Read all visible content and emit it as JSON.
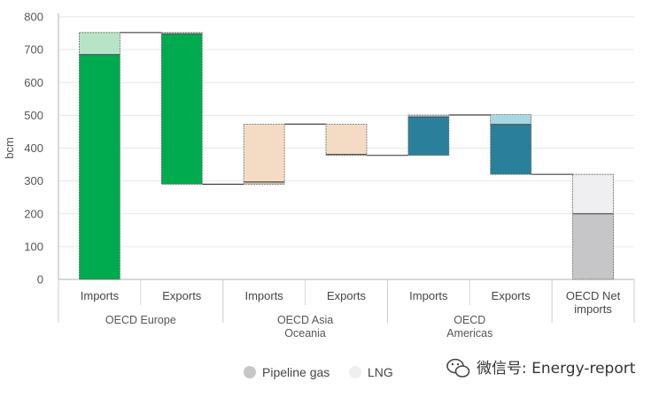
{
  "chart_data": {
    "type": "bar",
    "subtype": "waterfall",
    "ylabel": "bcm",
    "ylim": [
      0,
      800
    ],
    "yticks": [
      0,
      100,
      200,
      300,
      400,
      500,
      600,
      700,
      800
    ],
    "grid": true,
    "legend": {
      "position": "bottom",
      "entries": [
        {
          "name": "Pipeline gas",
          "color": "#c6c6c8"
        },
        {
          "name": "LNG",
          "color": "#efeff2"
        }
      ]
    },
    "categories": [
      "Imports",
      "Exports",
      "Imports",
      "Exports",
      "Imports",
      "Exports",
      "OECD Net imports"
    ],
    "groups": [
      {
        "label": [
          "OECD Europe"
        ],
        "categories": [
          0,
          1
        ]
      },
      {
        "label": [
          "OECD Asia",
          "Oceania"
        ],
        "categories": [
          2,
          3
        ]
      },
      {
        "label": [
          "OECD",
          "Americas"
        ],
        "categories": [
          4,
          5
        ]
      },
      {
        "label": [
          "OECD Net",
          "imports"
        ],
        "categories": [
          6
        ]
      }
    ],
    "bars": [
      {
        "category": "Imports",
        "group": "OECD Europe",
        "base": 0,
        "pipeline": 685,
        "lng": 67,
        "color_pipeline": "#00aa4f",
        "color_lng": "#b7e4c7"
      },
      {
        "category": "Exports",
        "group": "OECD Europe",
        "base": 290,
        "pipeline": 458,
        "lng": 4,
        "color_pipeline": "#00aa4f",
        "color_lng": "#b7e4c7"
      },
      {
        "category": "Imports",
        "group": "OECD Asia Oceania",
        "base": 290,
        "pipeline": 7,
        "lng": 176,
        "color_pipeline": "#cfb9a3",
        "color_lng": "#f4dcc4"
      },
      {
        "category": "Exports",
        "group": "OECD Asia Oceania",
        "base": 378,
        "pipeline": 3,
        "lng": 92,
        "color_pipeline": "#cfb9a3",
        "color_lng": "#f4dcc4"
      },
      {
        "category": "Imports",
        "group": "OECD Americas",
        "base": 378,
        "pipeline": 117,
        "lng": 6,
        "color_pipeline": "#2a7f9b",
        "color_lng": "#a9d6e3"
      },
      {
        "category": "Exports",
        "group": "OECD Americas",
        "base": 320,
        "pipeline": 152,
        "lng": 30,
        "color_pipeline": "#2a7f9b",
        "color_lng": "#a9d6e3"
      },
      {
        "category": "OECD Net imports",
        "group": "OECD Net imports",
        "base": 0,
        "pipeline": 200,
        "lng": 120,
        "color_pipeline": "#c6c6c8",
        "color_lng": "#efeff2"
      }
    ]
  },
  "watermark": "微信号: Energy-report"
}
